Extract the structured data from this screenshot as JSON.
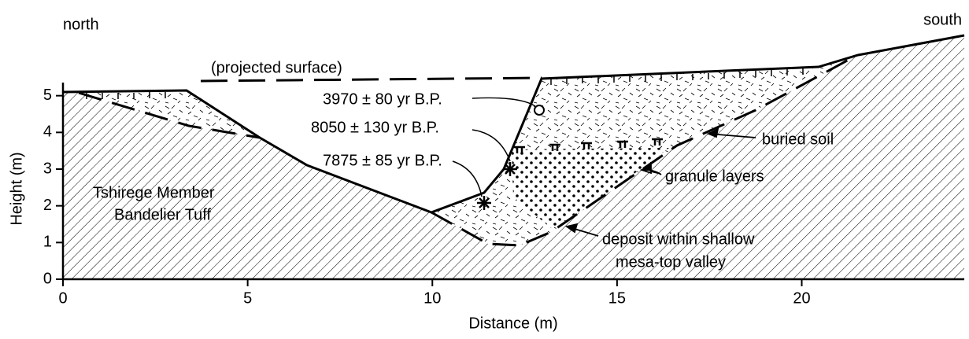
{
  "header": {
    "left": "north",
    "right": "south"
  },
  "axes": {
    "x_label": "Distance (m)",
    "y_label": "Height (m)",
    "xlim": [
      0,
      24.4
    ],
    "ylim": [
      0,
      5.4
    ],
    "xticks": [
      0,
      5,
      10,
      15,
      20
    ],
    "yticks": [
      0,
      1,
      2,
      3,
      4,
      5
    ]
  },
  "labels": {
    "projected": "(projected surface)",
    "date1": "3970 ± 80 yr B.P.",
    "date2": "8050 ± 130 yr B.P.",
    "date3": "7875 ± 85 yr B.P.",
    "tuff1": "Tshirege Member",
    "tuff2": "Bandelier Tuff",
    "soil": "buried soil",
    "granule": "granule layers",
    "deposit1": "deposit within shallow",
    "deposit2": "mesa-top valley"
  }
}
